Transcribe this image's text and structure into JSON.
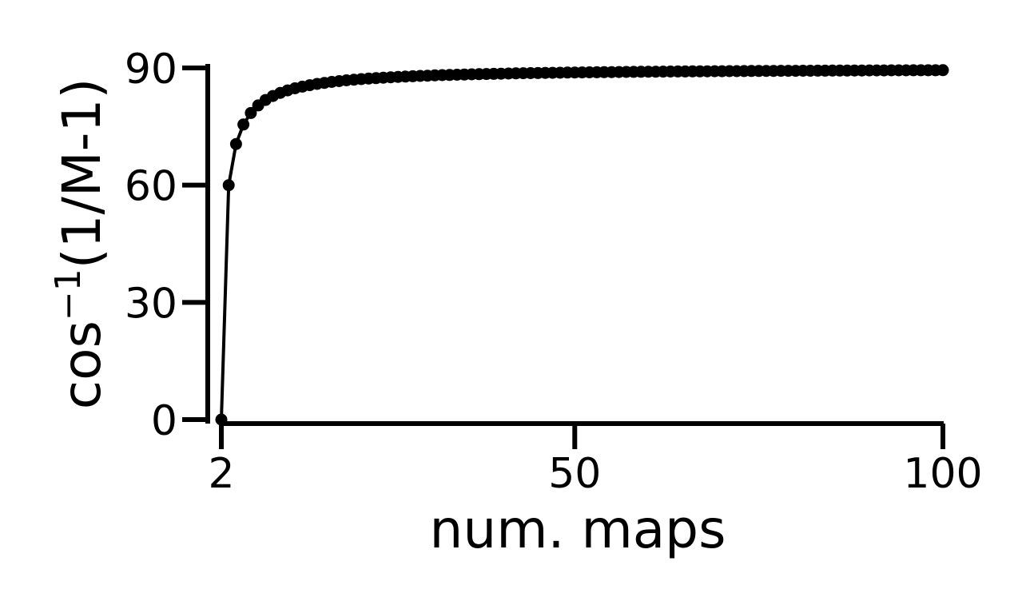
{
  "chart_data": {
    "type": "line",
    "title": "",
    "xlabel": "num. maps",
    "ylabel": {
      "base": "cos",
      "superscript": "−1",
      "suffix": "(1/M-1)"
    },
    "xlim": [
      2,
      100
    ],
    "ylim": [
      0,
      90
    ],
    "xticks": [
      2,
      50,
      100
    ],
    "xtick_labels": [
      "2",
      "50",
      "100"
    ],
    "yticks": [
      0,
      30,
      60,
      90
    ],
    "ytick_labels": [
      "0",
      "30",
      "60",
      "90"
    ],
    "grid": false,
    "legend": "none",
    "color": "#000000",
    "series": [
      {
        "x": [
          2,
          3,
          4,
          5,
          6,
          7,
          8,
          9,
          10,
          11,
          12,
          13,
          14,
          15,
          16,
          17,
          18,
          19,
          20,
          21,
          22,
          23,
          24,
          25,
          26,
          27,
          28,
          29,
          30,
          31,
          32,
          33,
          34,
          35,
          36,
          37,
          38,
          39,
          40,
          41,
          42,
          43,
          44,
          45,
          46,
          47,
          48,
          49,
          50,
          51,
          52,
          53,
          54,
          55,
          56,
          57,
          58,
          59,
          60,
          61,
          62,
          63,
          64,
          65,
          66,
          67,
          68,
          69,
          70,
          71,
          72,
          73,
          74,
          75,
          76,
          77,
          78,
          79,
          80,
          81,
          82,
          83,
          84,
          85,
          86,
          87,
          88,
          89,
          90,
          91,
          92,
          93,
          94,
          95,
          96,
          97,
          98,
          99,
          100
        ],
        "y": [
          0.0,
          60.0,
          70.53,
          75.52,
          78.46,
          80.41,
          81.79,
          82.82,
          83.62,
          84.26,
          84.79,
          85.22,
          85.59,
          85.91,
          86.18,
          86.42,
          86.63,
          86.82,
          86.99,
          87.13,
          87.27,
          87.39,
          87.51,
          87.61,
          87.7,
          87.79,
          87.88,
          87.95,
          88.02,
          88.09,
          88.15,
          88.21,
          88.26,
          88.31,
          88.36,
          88.41,
          88.45,
          88.49,
          88.53,
          88.57,
          88.6,
          88.64,
          88.67,
          88.7,
          88.73,
          88.75,
          88.78,
          88.81,
          88.83,
          88.85,
          88.88,
          88.9,
          88.92,
          88.94,
          88.96,
          88.98,
          88.99,
          89.01,
          89.03,
          89.04,
          89.06,
          89.08,
          89.09,
          89.1,
          89.12,
          89.13,
          89.14,
          89.16,
          89.17,
          89.18,
          89.19,
          89.2,
          89.22,
          89.23,
          89.24,
          89.25,
          89.26,
          89.27,
          89.27,
          89.28,
          89.29,
          89.3,
          89.31,
          89.32,
          89.33,
          89.33,
          89.34,
          89.35,
          89.36,
          89.36,
          89.37,
          89.38,
          89.38,
          89.39,
          89.4,
          89.4,
          89.41,
          89.41,
          89.42
        ]
      }
    ]
  }
}
